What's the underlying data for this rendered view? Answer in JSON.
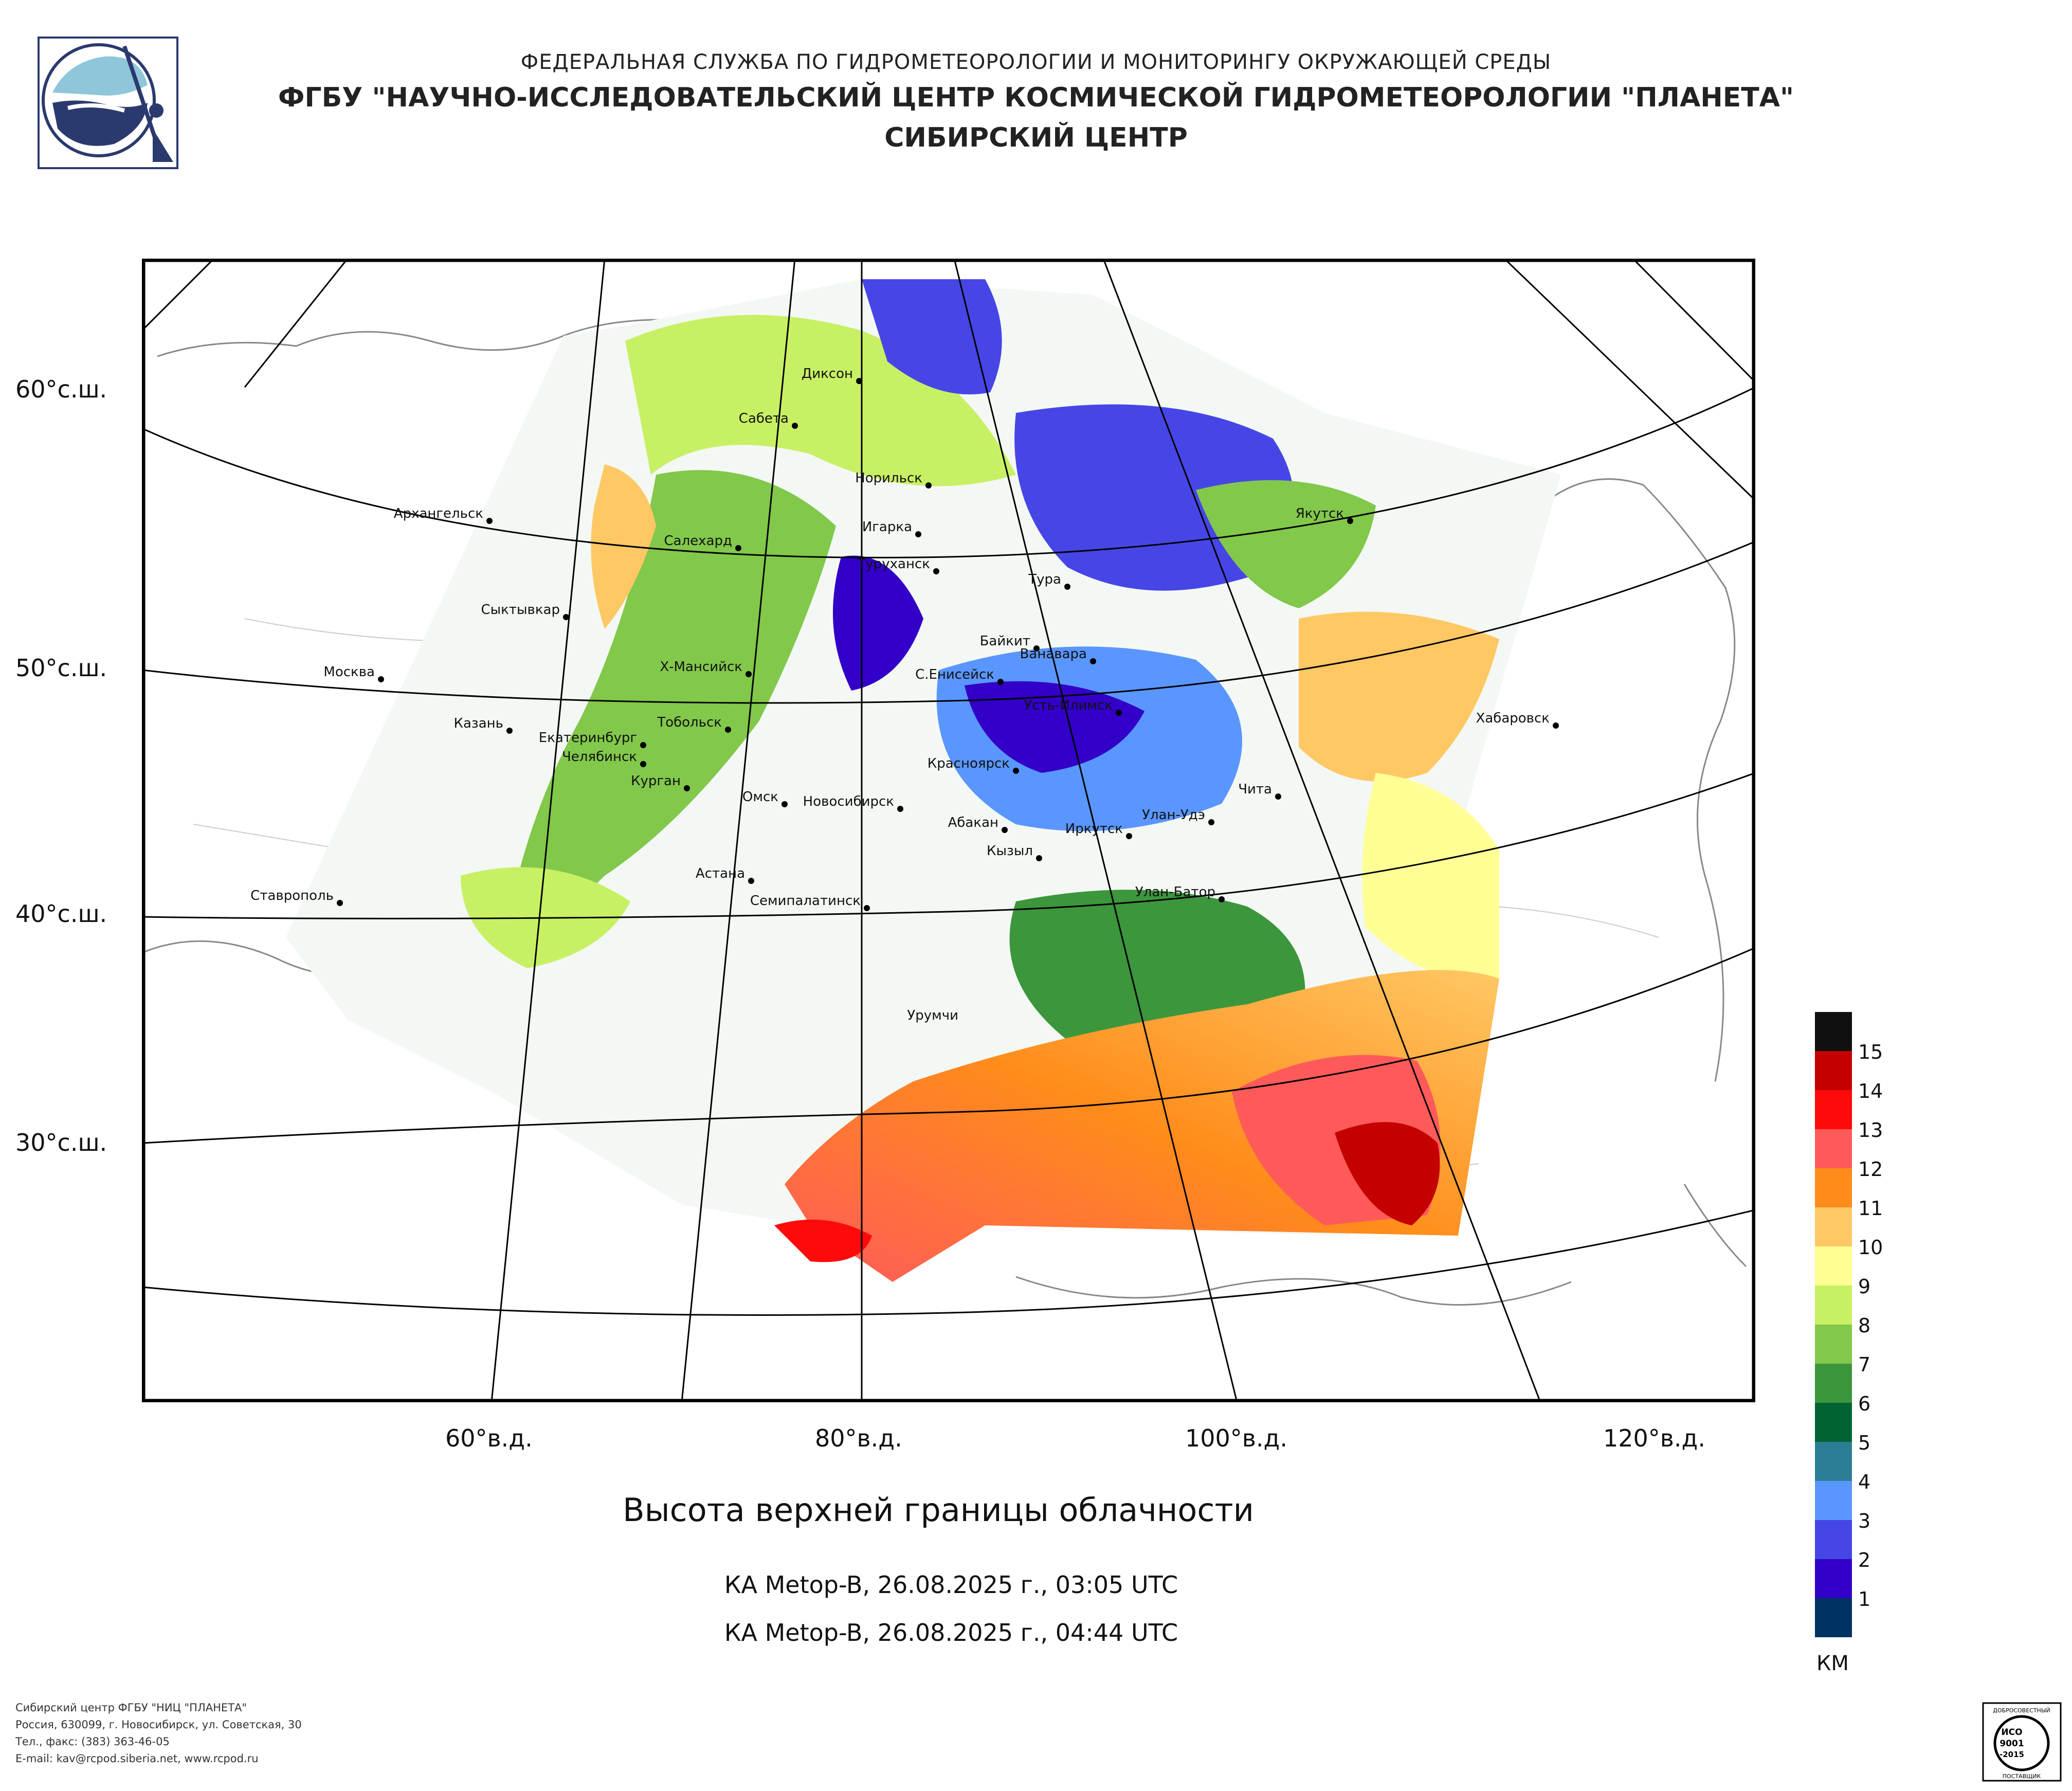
{
  "header": {
    "line1": "ФЕДЕРАЛЬНАЯ СЛУЖБА ПО ГИДРОМЕТЕОРОЛОГИИ И МОНИТОРИНГУ ОКРУЖАЮЩЕЙ СРЕДЫ",
    "line2": "ФГБУ \"НАУЧНО-ИССЛЕДОВАТЕЛЬСКИЙ ЦЕНТР КОСМИЧЕСКОЙ ГИДРОМЕТЕОРОЛОГИИ \"ПЛАНЕТА\"",
    "line3": "СИБИРСКИЙ ЦЕНТР"
  },
  "map": {
    "projection_style": "conic",
    "latitude_labels": [
      "60°с.ш.",
      "50°с.ш.",
      "40°с.ш.",
      "30°с.ш."
    ],
    "longitude_labels": [
      "60°в.д.",
      "80°в.д.",
      "100°в.д.",
      "120°в.д."
    ],
    "cities": [
      {
        "name": "Диксон"
      },
      {
        "name": "Сабета"
      },
      {
        "name": "Норильск"
      },
      {
        "name": "Архангельск"
      },
      {
        "name": "Салехард"
      },
      {
        "name": "Игарка"
      },
      {
        "name": "Туруханск"
      },
      {
        "name": "Якутск"
      },
      {
        "name": "Тура"
      },
      {
        "name": "Сыктывкар"
      },
      {
        "name": "Байкит"
      },
      {
        "name": "Ванавара"
      },
      {
        "name": "Москва"
      },
      {
        "name": "Х-Мансийск"
      },
      {
        "name": "С.Енисейск"
      },
      {
        "name": "Усть-Илимск"
      },
      {
        "name": "Казань"
      },
      {
        "name": "Тобольск"
      },
      {
        "name": "Хабаровск"
      },
      {
        "name": "Екатеринбург"
      },
      {
        "name": "Челябинск"
      },
      {
        "name": "Курган"
      },
      {
        "name": "Красноярск"
      },
      {
        "name": "Чита"
      },
      {
        "name": "Омск"
      },
      {
        "name": "Новосибирск"
      },
      {
        "name": "Абакан"
      },
      {
        "name": "Улан-Удэ"
      },
      {
        "name": "Иркутск"
      },
      {
        "name": "Кызыл"
      },
      {
        "name": "Ставрополь"
      },
      {
        "name": "Астана"
      },
      {
        "name": "Улан-Батор"
      },
      {
        "name": "Семипалатинск"
      },
      {
        "name": "Урумчи"
      }
    ]
  },
  "title": "Высота верхней границы облачности",
  "timestamps": [
    "КА Metop-B, 26.08.2025 г., 03:05 UTC",
    "КА Metop-B, 26.08.2025 г., 04:44 UTC"
  ],
  "legend": {
    "unit": "КМ",
    "levels": [
      {
        "label": "15",
        "color": "#101010"
      },
      {
        "label": "14",
        "color": "#c40000"
      },
      {
        "label": "13",
        "color": "#ff0a0a"
      },
      {
        "label": "12",
        "color": "#ff5a5a"
      },
      {
        "label": "11",
        "color": "#ff8c1a"
      },
      {
        "label": "10",
        "color": "#ffc864"
      },
      {
        "label": "9",
        "color": "#ffff96"
      },
      {
        "label": "8",
        "color": "#c8f064"
      },
      {
        "label": "7",
        "color": "#82c84b"
      },
      {
        "label": "6",
        "color": "#3c963c"
      },
      {
        "label": "5",
        "color": "#006432"
      },
      {
        "label": "4",
        "color": "#2d7d96"
      },
      {
        "label": "3",
        "color": "#5a96ff"
      },
      {
        "label": "2",
        "color": "#4646e6"
      },
      {
        "label": "1",
        "color": "#3200c8"
      },
      {
        "label": "",
        "color": "#003264"
      }
    ]
  },
  "footer": {
    "line1": "Сибирский центр ФГБУ \"НИЦ \"ПЛАНЕТА\"",
    "line2": "Россия, 630099, г. Новосибирск, ул. Советская, 30",
    "line3": "Тел., факс: (383) 363-46-05",
    "line4": "E-mail: kav@rcpod.siberia.net, www.rcpod.ru"
  },
  "badge": {
    "top_text": "ДОБРОСОВЕСТНЫЙ",
    "line1": "ИСО",
    "line2": "9001",
    "line3": "-2015",
    "bottom_text": "ПОСТАВЩИК"
  },
  "colors": {
    "background": "#ffffff",
    "graticule": "#000000",
    "coastline": "#888888",
    "logo_navy": "#2b3a6e",
    "logo_sky": "#8fc6da"
  }
}
